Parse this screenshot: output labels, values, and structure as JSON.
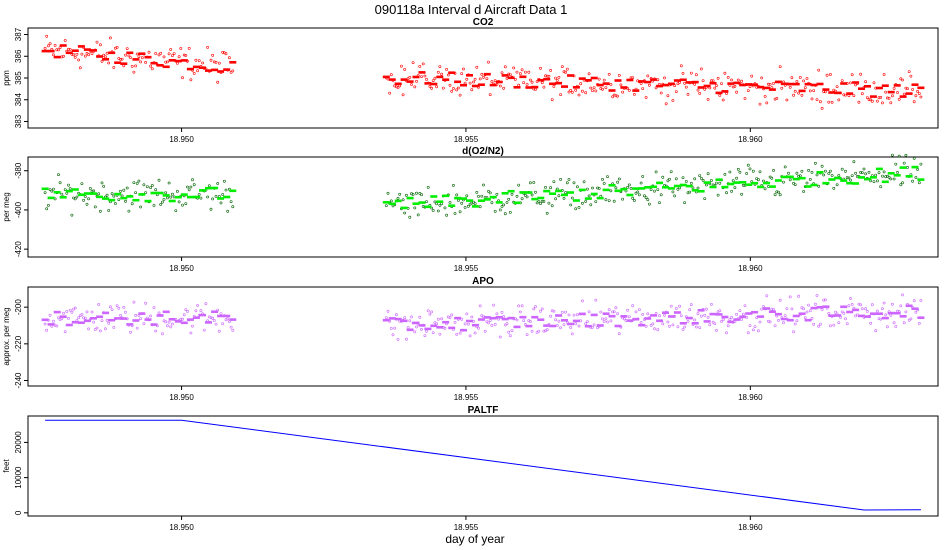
{
  "figure": {
    "title": "090118a   Interval d Aircraft Data 1",
    "xlabel": "day of year"
  },
  "chart_data": [
    {
      "type": "scatter",
      "title": "CO2",
      "ylabel": "ppm",
      "color": "#ff0000",
      "xlim": [
        18.9473,
        18.9633
      ],
      "ylim": [
        382.7,
        387.3
      ],
      "xticks": [
        18.95,
        18.955,
        18.96
      ],
      "xtick_labels": [
        "18.950",
        "18.955",
        "18.960"
      ],
      "yticks": [
        383,
        384,
        385,
        386,
        387
      ],
      "ytick_labels": [
        "383",
        "384",
        "385",
        "386",
        "387"
      ],
      "segments": [
        {
          "x_start": 18.9476,
          "x_end": 18.9509,
          "y_start": 386.3,
          "y_end": 385.5
        },
        {
          "x_start": 18.9536,
          "x_end": 18.963,
          "y_start": 385.0,
          "y_end": 384.4
        }
      ]
    },
    {
      "type": "scatter",
      "title": "d(O2/N2)",
      "ylabel": "per meg",
      "color": "#00ee00",
      "xlim": [
        18.9473,
        18.9633
      ],
      "ylim": [
        -424,
        -373
      ],
      "xticks": [
        18.95,
        18.955,
        18.96
      ],
      "xtick_labels": [
        "18.950",
        "18.955",
        "18.960"
      ],
      "yticks": [
        -420,
        -400,
        -380
      ],
      "ytick_labels": [
        "-420",
        "-400",
        "-380"
      ],
      "segments": [
        {
          "x_start": 18.9476,
          "x_end": 18.9509,
          "y_start": -392,
          "y_end": -392
        },
        {
          "x_start": 18.9536,
          "x_end": 18.963,
          "y_start": -398,
          "y_end": -381
        }
      ]
    },
    {
      "type": "scatter",
      "title": "APO",
      "ylabel": "approx. per meg",
      "color": "#cc66ff",
      "xlim": [
        18.9473,
        18.9633
      ],
      "ylim": [
        -243,
        -189
      ],
      "xticks": [
        18.95,
        18.955,
        18.96
      ],
      "xtick_labels": [
        "18.950",
        "18.955",
        "18.960"
      ],
      "yticks": [
        -240,
        -220,
        -200
      ],
      "ytick_labels": [
        "-240",
        "-220",
        "-200"
      ],
      "segments": [
        {
          "x_start": 18.9476,
          "x_end": 18.9509,
          "y_start": -206,
          "y_end": -206
        },
        {
          "x_start": 18.9536,
          "x_end": 18.963,
          "y_start": -210,
          "y_end": -202
        }
      ]
    },
    {
      "type": "line",
      "title": "PALTF",
      "ylabel": "feet",
      "color": "#0000ff",
      "xlim": [
        18.9473,
        18.9633
      ],
      "ylim": [
        -900,
        27500
      ],
      "xticks": [
        18.95,
        18.955,
        18.96
      ],
      "xtick_labels": [
        "18.950",
        "18.955",
        "18.960"
      ],
      "yticks": [
        0,
        10000,
        20000
      ],
      "ytick_labels": [
        "0",
        "10000",
        "20000"
      ],
      "x": [
        18.9476,
        18.95,
        18.962,
        18.963
      ],
      "y": [
        26300,
        26300,
        800,
        900
      ]
    }
  ]
}
